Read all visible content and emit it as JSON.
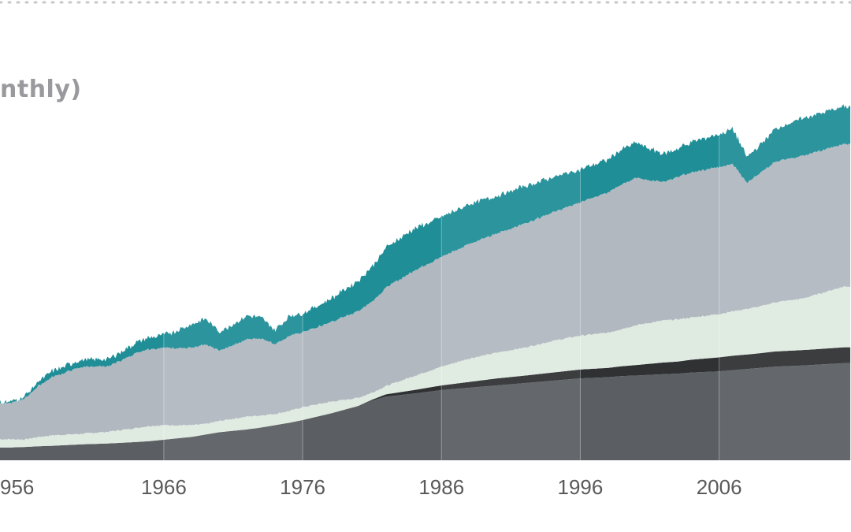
{
  "chart_data": {
    "type": "area",
    "title": "nthly)",
    "x_ticks": [
      "956",
      "1966",
      "1976",
      "1986",
      "1996",
      "2006"
    ],
    "x": [
      1955,
      1956,
      1957,
      1958,
      1960,
      1962,
      1964,
      1965,
      1966,
      1968,
      1969,
      1970,
      1972,
      1973,
      1974,
      1975,
      1976,
      1978,
      1980,
      1981,
      1982,
      1984,
      1986,
      1988,
      1990,
      1992,
      1994,
      1996,
      1998,
      1999,
      2000,
      2002,
      2003,
      2004,
      2006,
      2007,
      2008,
      2009,
      2010,
      2012,
      2015
    ],
    "series": [
      {
        "color": "#5b5f63",
        "values": [
          0.55,
          0.57,
          0.6,
          0.62,
          0.68,
          0.72,
          0.78,
          0.82,
          0.88,
          1.0,
          1.1,
          1.2,
          1.32,
          1.4,
          1.5,
          1.6,
          1.72,
          2.0,
          2.3,
          2.55,
          2.72,
          2.85,
          3.0,
          3.1,
          3.2,
          3.3,
          3.4,
          3.5,
          3.55,
          3.6,
          3.62,
          3.68,
          3.7,
          3.75,
          3.8,
          3.85,
          3.9,
          3.95,
          4.0,
          4.05,
          4.15
        ]
      },
      {
        "color": "#2f3133",
        "values": [
          0.0,
          0.0,
          0.0,
          0.0,
          0.0,
          0.0,
          0.0,
          0.0,
          0.0,
          0.0,
          0.0,
          0.0,
          0.0,
          0.0,
          0.0,
          0.0,
          0.0,
          0.0,
          0.02,
          0.04,
          0.1,
          0.15,
          0.2,
          0.25,
          0.3,
          0.32,
          0.35,
          0.38,
          0.4,
          0.42,
          0.45,
          0.5,
          0.52,
          0.55,
          0.6,
          0.62,
          0.62,
          0.63,
          0.65,
          0.66,
          0.68
        ]
      },
      {
        "color": "#dfeae1",
        "values": [
          0.35,
          0.32,
          0.4,
          0.45,
          0.45,
          0.5,
          0.6,
          0.65,
          0.62,
          0.5,
          0.45,
          0.48,
          0.55,
          0.52,
          0.48,
          0.5,
          0.55,
          0.5,
          0.35,
          0.3,
          0.35,
          0.6,
          0.8,
          1.0,
          1.1,
          1.2,
          1.35,
          1.45,
          1.5,
          1.6,
          1.7,
          1.8,
          1.8,
          1.8,
          1.85,
          1.9,
          1.95,
          2.0,
          2.1,
          2.2,
          2.6
        ]
      },
      {
        "color": "#b2b8c0",
        "values": [
          1.55,
          1.75,
          2.2,
          2.5,
          2.85,
          2.8,
          3.2,
          3.3,
          3.3,
          3.3,
          3.4,
          3.0,
          3.3,
          3.3,
          3.0,
          3.2,
          3.2,
          3.4,
          3.7,
          3.9,
          4.2,
          4.5,
          4.7,
          4.9,
          5.1,
          5.3,
          5.5,
          5.7,
          6.0,
          6.2,
          6.3,
          5.9,
          6.1,
          6.2,
          6.3,
          6.3,
          5.4,
          5.7,
          6.0,
          6.1,
          6.1
        ]
      },
      {
        "color": "#1f8e97",
        "values": [
          0.05,
          0.1,
          0.2,
          0.25,
          0.3,
          0.3,
          0.45,
          0.5,
          0.55,
          1.0,
          1.1,
          0.8,
          1.0,
          0.9,
          0.6,
          0.85,
          0.8,
          1.0,
          1.3,
          1.5,
          1.7,
          1.8,
          1.7,
          1.7,
          1.6,
          1.6,
          1.5,
          1.4,
          1.4,
          1.5,
          1.5,
          1.2,
          1.2,
          1.3,
          1.4,
          1.5,
          1.1,
          1.2,
          1.4,
          1.6,
          1.6
        ]
      }
    ],
    "xlim": [
      1954.2,
      2015.5
    ],
    "ylim": [
      0,
      19
    ],
    "grid": false,
    "legend": "none"
  }
}
